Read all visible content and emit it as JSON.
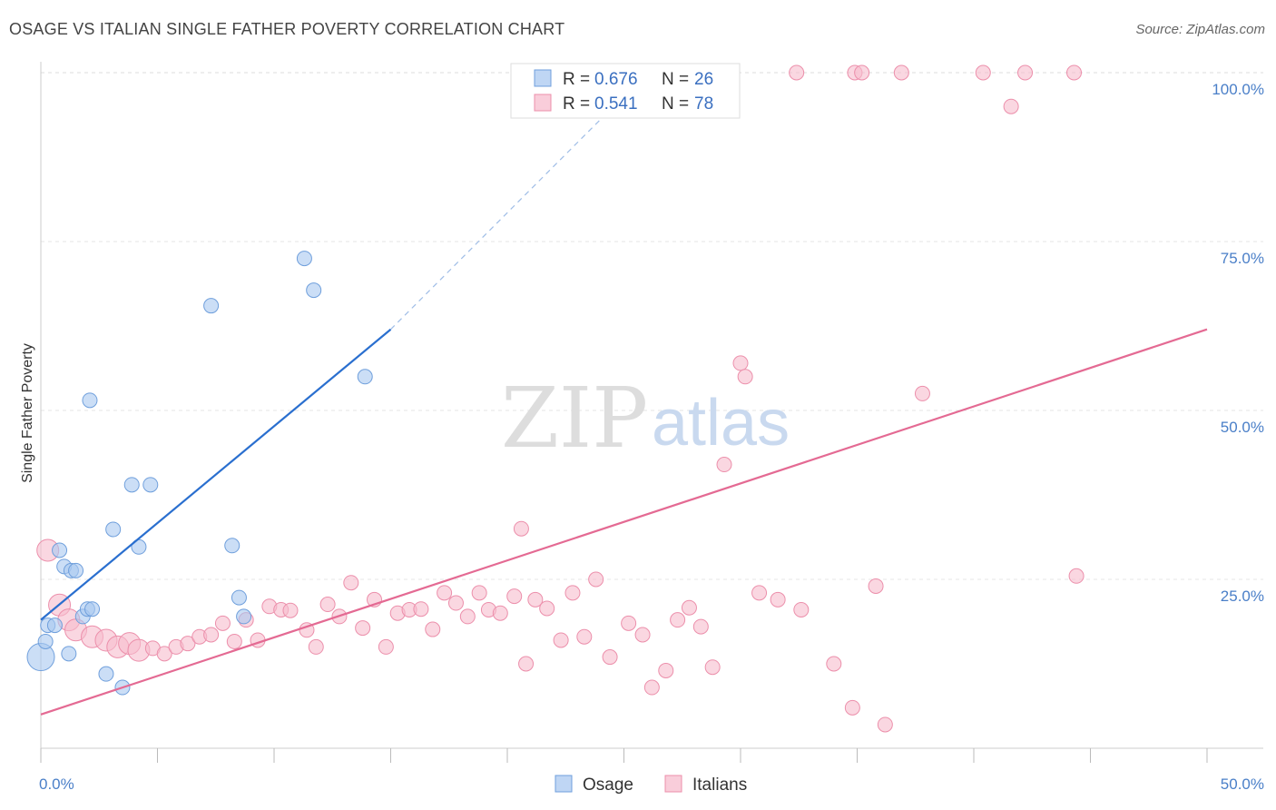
{
  "header": {
    "title": "OSAGE VS ITALIAN SINGLE FATHER POVERTY CORRELATION CHART",
    "source": "Source: ZipAtlas.com"
  },
  "colors": {
    "osage": "#a9c8f0",
    "osage_stroke": "#6f9fdc",
    "osage_line": "#2a6fcf",
    "italians": "#f7bccd",
    "italians_stroke": "#ec8fab",
    "italians_line": "#e46a93"
  },
  "watermark": {
    "zip": "ZIP",
    "atlas": "atlas"
  },
  "chart_data": {
    "type": "scatter",
    "title": "OSAGE VS ITALIAN SINGLE FATHER POVERTY CORRELATION CHART",
    "xlabel": "",
    "ylabel": "Single Father Poverty",
    "xlim": [
      0,
      50
    ],
    "ylim": [
      0,
      105
    ],
    "x_ticks": [
      0,
      5,
      10,
      15,
      20,
      25,
      30,
      35,
      40,
      45,
      50
    ],
    "x_tick_labels": {
      "left": "0.0%",
      "right": "50.0%"
    },
    "y_ticks": [
      25,
      50,
      75,
      100
    ],
    "y_tick_labels": [
      "25.0%",
      "50.0%",
      "75.0%",
      "100.0%"
    ],
    "legend": {
      "entries": [
        {
          "r_label": "R = ",
          "r_value": "0.676",
          "n_label": "N = ",
          "n_value": "26"
        },
        {
          "r_label": "R = ",
          "r_value": "0.541",
          "n_label": "N = ",
          "n_value": "78"
        }
      ],
      "bottom": [
        "Osage",
        "Italians"
      ]
    },
    "series": [
      {
        "name": "Osage",
        "r": 0.676,
        "n": 26,
        "trend": {
          "x": [
            0,
            15
          ],
          "y": [
            19,
            62
          ],
          "dashed_to": [
            26,
            100
          ]
        },
        "points": [
          [
            0.0,
            13.5,
            3
          ],
          [
            0.2,
            15.8,
            1
          ],
          [
            0.3,
            18.2,
            1
          ],
          [
            0.6,
            18.2,
            1
          ],
          [
            0.8,
            29.3,
            1
          ],
          [
            1.0,
            26.9,
            1
          ],
          [
            1.2,
            14.0,
            1
          ],
          [
            1.3,
            26.3,
            1
          ],
          [
            1.5,
            26.3,
            1
          ],
          [
            1.8,
            19.5,
            1
          ],
          [
            2.0,
            20.6,
            1
          ],
          [
            2.2,
            20.6,
            1
          ],
          [
            2.1,
            51.5,
            1
          ],
          [
            3.5,
            9.0,
            1
          ],
          [
            3.1,
            32.4,
            1
          ],
          [
            3.9,
            39.0,
            1
          ],
          [
            4.2,
            29.8,
            1
          ],
          [
            4.7,
            39.0,
            1
          ],
          [
            7.3,
            65.5,
            1
          ],
          [
            8.2,
            30.0,
            1
          ],
          [
            8.5,
            22.3,
            1
          ],
          [
            8.7,
            19.5,
            1
          ],
          [
            11.3,
            72.5,
            1
          ],
          [
            11.7,
            67.8,
            1
          ],
          [
            13.9,
            55.0,
            1
          ],
          [
            2.8,
            11.0,
            1
          ]
        ]
      },
      {
        "name": "Italians",
        "r": 0.541,
        "n": 78,
        "trend": {
          "x": [
            0,
            50
          ],
          "y": [
            5,
            62
          ]
        },
        "points": [
          [
            0.3,
            29.3,
            2
          ],
          [
            0.8,
            21.2,
            2
          ],
          [
            1.2,
            19.0,
            2
          ],
          [
            1.5,
            17.5,
            2
          ],
          [
            2.2,
            16.5,
            2
          ],
          [
            2.8,
            16.0,
            2
          ],
          [
            3.3,
            15.0,
            2
          ],
          [
            3.8,
            15.5,
            2
          ],
          [
            4.2,
            14.5,
            2
          ],
          [
            4.8,
            14.8,
            1
          ],
          [
            5.3,
            14.0,
            1
          ],
          [
            5.8,
            15.0,
            1
          ],
          [
            6.3,
            15.5,
            1
          ],
          [
            6.8,
            16.5,
            1
          ],
          [
            7.3,
            16.8,
            1
          ],
          [
            7.8,
            18.5,
            1
          ],
          [
            8.3,
            15.8,
            1
          ],
          [
            8.8,
            19.0,
            1
          ],
          [
            9.3,
            16.0,
            1
          ],
          [
            9.8,
            21.0,
            1
          ],
          [
            10.3,
            20.5,
            1
          ],
          [
            10.7,
            20.4,
            1
          ],
          [
            11.4,
            17.5,
            1
          ],
          [
            11.8,
            15.0,
            1
          ],
          [
            12.3,
            21.3,
            1
          ],
          [
            12.8,
            19.5,
            1
          ],
          [
            13.3,
            24.5,
            1
          ],
          [
            13.8,
            17.8,
            1
          ],
          [
            14.3,
            22.0,
            1
          ],
          [
            14.8,
            15.0,
            1
          ],
          [
            15.3,
            20.0,
            1
          ],
          [
            15.8,
            20.5,
            1
          ],
          [
            16.3,
            20.6,
            1
          ],
          [
            16.8,
            17.6,
            1
          ],
          [
            17.3,
            23.0,
            1
          ],
          [
            17.8,
            21.5,
            1
          ],
          [
            18.3,
            19.5,
            1
          ],
          [
            18.8,
            23.0,
            1
          ],
          [
            19.2,
            20.5,
            1
          ],
          [
            19.7,
            20.0,
            1
          ],
          [
            20.3,
            22.5,
            1
          ],
          [
            20.8,
            12.5,
            1
          ],
          [
            21.2,
            22.0,
            1
          ],
          [
            21.7,
            20.7,
            1
          ],
          [
            22.3,
            16.0,
            1
          ],
          [
            22.8,
            23.0,
            1
          ],
          [
            23.3,
            16.5,
            1
          ],
          [
            23.8,
            25.0,
            1
          ],
          [
            24.4,
            13.5,
            1
          ],
          [
            25.2,
            18.5,
            1
          ],
          [
            25.8,
            16.8,
            1
          ],
          [
            26.2,
            9.0,
            1
          ],
          [
            26.8,
            11.5,
            1
          ],
          [
            27.3,
            19.0,
            1
          ],
          [
            27.8,
            20.8,
            1
          ],
          [
            28.3,
            18.0,
            1
          ],
          [
            28.8,
            12.0,
            1
          ],
          [
            20.6,
            32.5,
            1
          ],
          [
            29.3,
            42.0,
            1
          ],
          [
            30.0,
            57.0,
            1
          ],
          [
            30.2,
            55.0,
            1
          ],
          [
            30.8,
            23.0,
            1
          ],
          [
            31.6,
            22.0,
            1
          ],
          [
            32.6,
            20.5,
            1
          ],
          [
            34.0,
            12.5,
            1
          ],
          [
            34.8,
            6.0,
            1
          ],
          [
            35.8,
            24.0,
            1
          ],
          [
            36.2,
            3.5,
            1
          ],
          [
            37.8,
            52.5,
            1
          ],
          [
            44.4,
            25.5,
            1
          ],
          [
            32.4,
            100.0,
            1
          ],
          [
            34.9,
            100.0,
            1
          ],
          [
            35.2,
            100.0,
            1
          ],
          [
            36.9,
            100.0,
            1
          ],
          [
            40.4,
            100.0,
            1
          ],
          [
            42.2,
            100.0,
            1
          ],
          [
            44.3,
            100.0,
            1
          ],
          [
            41.6,
            95.0,
            1
          ]
        ]
      }
    ]
  }
}
